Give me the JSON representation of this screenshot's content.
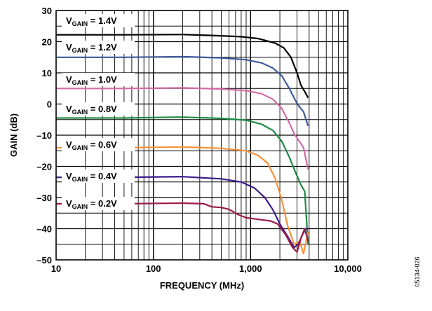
{
  "chart_data": {
    "type": "line",
    "xlabel": "FREQUENCY (MHz)",
    "ylabel": "GAIN (dB)",
    "x_scale": "log",
    "xlim": [
      10,
      10000
    ],
    "ylim": [
      -50,
      30
    ],
    "grid": true,
    "x_ticks": [
      10,
      100,
      1000,
      10000
    ],
    "x_tick_labels": [
      "10",
      "100",
      "1,000",
      "10,000"
    ],
    "y_ticks": [
      30,
      20,
      10,
      0,
      -10,
      -20,
      -30,
      -40,
      -50
    ],
    "y_tick_labels": [
      "30",
      "20",
      "10",
      "0",
      "–10",
      "–20",
      "–30",
      "–40",
      "–50"
    ],
    "series": [
      {
        "name": "V_GAIN = 1.4V",
        "label_main": "V",
        "label_sub": "GAIN",
        "label_rest": " = 1.4V",
        "color": "#000000",
        "points": [
          [
            10,
            22.2
          ],
          [
            50,
            22.2
          ],
          [
            200,
            22.3
          ],
          [
            400,
            22.0
          ],
          [
            800,
            21.6
          ],
          [
            1200,
            21.0
          ],
          [
            1800,
            19.5
          ],
          [
            2200,
            18
          ],
          [
            2600,
            15
          ],
          [
            3000,
            10
          ],
          [
            3300,
            6
          ],
          [
            3600,
            4
          ],
          [
            3900,
            2
          ]
        ]
      },
      {
        "name": "V_GAIN = 1.2V",
        "label_main": "V",
        "label_sub": "GAIN",
        "label_rest": " = 1.2V",
        "color": "#3c5a9a",
        "points": [
          [
            10,
            15
          ],
          [
            50,
            15
          ],
          [
            200,
            15.2
          ],
          [
            500,
            14.8
          ],
          [
            900,
            14.2
          ],
          [
            1300,
            13.2
          ],
          [
            1700,
            11.5
          ],
          [
            2100,
            9
          ],
          [
            2500,
            5
          ],
          [
            2900,
            1
          ],
          [
            3200,
            -1
          ],
          [
            3500,
            -2.5
          ],
          [
            3900,
            -7
          ]
        ]
      },
      {
        "name": "V_GAIN = 1.0V",
        "label_main": "V",
        "label_sub": "GAIN",
        "label_rest": " = 1.0V",
        "color": "#d46aa6",
        "points": [
          [
            10,
            5
          ],
          [
            50,
            5
          ],
          [
            200,
            5.2
          ],
          [
            500,
            4.8
          ],
          [
            900,
            4.3
          ],
          [
            1300,
            3.3
          ],
          [
            1700,
            1.5
          ],
          [
            2100,
            -1.5
          ],
          [
            2500,
            -6
          ],
          [
            2800,
            -9.5
          ],
          [
            3100,
            -11.5
          ],
          [
            3500,
            -14
          ],
          [
            3900,
            -21
          ]
        ]
      },
      {
        "name": "V_GAIN = 0.8V",
        "label_main": "V",
        "label_sub": "GAIN",
        "label_rest": " = 0.8V",
        "color": "#1e8a45",
        "points": [
          [
            10,
            -4.5
          ],
          [
            50,
            -4.5
          ],
          [
            200,
            -4.2
          ],
          [
            500,
            -4.6
          ],
          [
            900,
            -5.2
          ],
          [
            1300,
            -6.5
          ],
          [
            1700,
            -8.5
          ],
          [
            2100,
            -12
          ],
          [
            2500,
            -17
          ],
          [
            2900,
            -22
          ],
          [
            3300,
            -26
          ],
          [
            3600,
            -28
          ],
          [
            3900,
            -45
          ]
        ]
      },
      {
        "name": "V_GAIN = 0.6V",
        "label_main": "V",
        "label_sub": "GAIN",
        "label_rest": " = 0.6V",
        "color": "#f7923a",
        "points": [
          [
            10,
            -14
          ],
          [
            50,
            -14
          ],
          [
            200,
            -13.8
          ],
          [
            500,
            -14.2
          ],
          [
            900,
            -15
          ],
          [
            1200,
            -16.5
          ],
          [
            1500,
            -19
          ],
          [
            1800,
            -24
          ],
          [
            2100,
            -31
          ],
          [
            2400,
            -39
          ],
          [
            2800,
            -45
          ],
          [
            3200,
            -44
          ],
          [
            3500,
            -48
          ],
          [
            3900,
            -41
          ]
        ]
      },
      {
        "name": "V_GAIN = 0.4V",
        "label_main": "V",
        "label_sub": "GAIN",
        "label_rest": " = 0.4V",
        "color": "#3a1a8c",
        "points": [
          [
            10,
            -23.5
          ],
          [
            50,
            -23.5
          ],
          [
            200,
            -23.3
          ],
          [
            500,
            -24
          ],
          [
            800,
            -25
          ],
          [
            1100,
            -27
          ],
          [
            1400,
            -30
          ],
          [
            1700,
            -34
          ],
          [
            2000,
            -38.5
          ],
          [
            2400,
            -42.5
          ],
          [
            2800,
            -46
          ],
          [
            3100,
            -45
          ],
          [
            3400,
            -42
          ],
          [
            3700,
            -40
          ],
          [
            3900,
            -40
          ]
        ]
      },
      {
        "name": "V_GAIN = 0.2V",
        "label_main": "V",
        "label_sub": "GAIN",
        "label_rest": " = 0.2V",
        "color": "#9b1a4a",
        "points": [
          [
            10,
            -32
          ],
          [
            50,
            -32
          ],
          [
            200,
            -31.8
          ],
          [
            330,
            -32
          ],
          [
            400,
            -33
          ],
          [
            500,
            -33.2
          ],
          [
            600,
            -33.8
          ],
          [
            750,
            -35.5
          ],
          [
            900,
            -36.5
          ],
          [
            1200,
            -37
          ],
          [
            1600,
            -37.5
          ],
          [
            1900,
            -38.5
          ],
          [
            2300,
            -42
          ],
          [
            2700,
            -46
          ],
          [
            3000,
            -47.5
          ],
          [
            3300,
            -43
          ],
          [
            3600,
            -40
          ],
          [
            3900,
            -44
          ]
        ]
      }
    ],
    "figure_id": "05134-026"
  }
}
